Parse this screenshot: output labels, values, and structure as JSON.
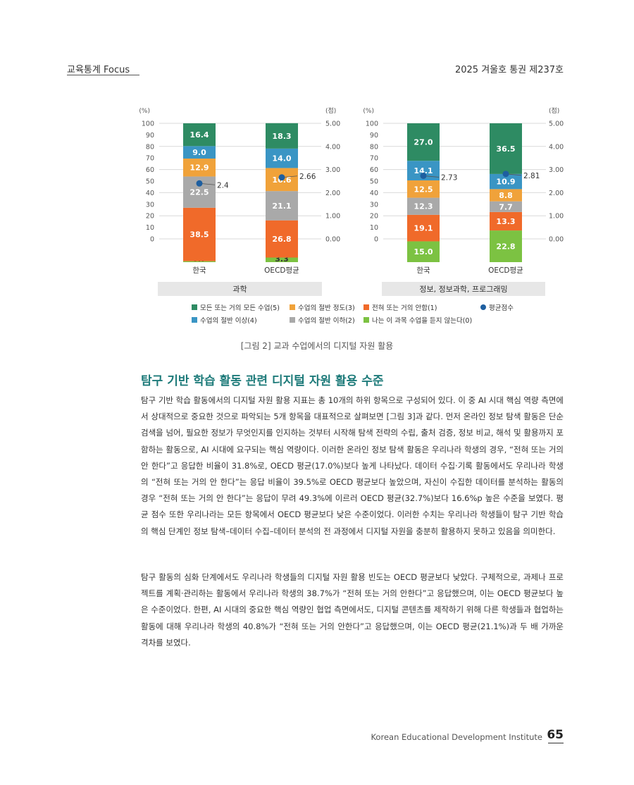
{
  "header": {
    "left": "교육통계 Focus",
    "right": "2025 겨울호 통권 제237호"
  },
  "chart_data": [
    {
      "type": "bar",
      "stacked": true,
      "title": "과학",
      "ylabel_left": "(%)",
      "ylabel_right": "(점)",
      "ylim": [
        0,
        100
      ],
      "y2lim": [
        0,
        5
      ],
      "left_ticks": [
        "100",
        "90",
        "80",
        "70",
        "60",
        "50",
        "40",
        "30",
        "20",
        "10",
        "0"
      ],
      "right_ticks": [
        "5.00",
        "4.00",
        "3.00",
        "2.00",
        "1.00",
        "0.00"
      ],
      "categories": [
        "한국",
        "OECD평균"
      ],
      "series": [
        {
          "name": "나는 이 과목 수업을 듣지 않는다(0)",
          "values": [
            0.7,
            3.3
          ]
        },
        {
          "name": "전혀 또는 거의 안함(1)",
          "values": [
            38.5,
            26.8
          ]
        },
        {
          "name": "수업의 절반 이하(2)",
          "values": [
            22.5,
            21.1
          ]
        },
        {
          "name": "수업의 절반 정도(3)",
          "values": [
            12.9,
            16.6
          ]
        },
        {
          "name": "수업의 절반 이상(4)",
          "values": [
            9.0,
            14.0
          ]
        },
        {
          "name": "모든 또는 거의 모든 수업(5)",
          "values": [
            16.4,
            18.3
          ]
        }
      ],
      "value_labels": [
        [
          "0.7",
          "38.5",
          "22.5",
          "12.9",
          "9.0",
          "16.4"
        ],
        [
          "3.3",
          "26.8",
          "21.1",
          "16.6",
          "14.0",
          "18.3"
        ]
      ],
      "average_score": [
        2.4,
        2.66
      ],
      "average_score_labels": [
        "2.4",
        "2.66"
      ]
    },
    {
      "type": "bar",
      "stacked": true,
      "title": "정보, 정보과학, 프로그래밍",
      "ylabel_left": "(%)",
      "ylabel_right": "(점)",
      "ylim": [
        0,
        100
      ],
      "y2lim": [
        0,
        5
      ],
      "left_ticks": [
        "100",
        "90",
        "80",
        "70",
        "60",
        "50",
        "40",
        "30",
        "20",
        "10",
        "0"
      ],
      "right_ticks": [
        "5.00",
        "4.00",
        "3.00",
        "2.00",
        "1.00",
        "0.00"
      ],
      "categories": [
        "한국",
        "OECD평균"
      ],
      "series": [
        {
          "name": "나는 이 과목 수업을 듣지 않는다(0)",
          "values": [
            15.0,
            22.8
          ]
        },
        {
          "name": "전혀 또는 거의 안함(1)",
          "values": [
            19.1,
            13.3
          ]
        },
        {
          "name": "수업의 절반 이하(2)",
          "values": [
            12.3,
            7.7
          ]
        },
        {
          "name": "수업의 절반 정도(3)",
          "values": [
            12.5,
            8.8
          ]
        },
        {
          "name": "수업의 절반 이상(4)",
          "values": [
            14.1,
            10.9
          ]
        },
        {
          "name": "모든 또는 거의 모든 수업(5)",
          "values": [
            27.0,
            36.5
          ]
        }
      ],
      "value_labels": [
        [
          "15.0",
          "19.1",
          "12.3",
          "12.5",
          "14.1",
          "27.0"
        ],
        [
          "22.8",
          "13.3",
          "7.7",
          "8.8",
          "10.9",
          "36.5"
        ]
      ],
      "average_score": [
        2.73,
        2.81
      ],
      "average_score_labels": [
        "2.73",
        "2.81"
      ]
    }
  ],
  "legend": [
    {
      "label": "모든 또는 거의 모든 수업(5)",
      "color": "#2e8b63"
    },
    {
      "label": "수업의 절반 정도(3)",
      "color": "#f0a23a"
    },
    {
      "label": "전혀 또는 거의 안함(1)",
      "color": "#f06a2a"
    },
    {
      "label": "평균점수",
      "color": "#1e5fa0",
      "marker": "dot"
    },
    {
      "label": "수업의 절반 이상(4)",
      "color": "#3a95c4"
    },
    {
      "label": "수업의 절반 이하(2)",
      "color": "#a9a9a9"
    },
    {
      "label": "나는 이 과목 수업을 듣지 않는다(0)",
      "color": "#7cc242"
    }
  ],
  "colors": {
    "level0": "#7cc242",
    "level1": "#f06a2a",
    "level2": "#a9a9a9",
    "level3": "#f0a23a",
    "level4": "#3a95c4",
    "level5": "#2e8b63",
    "dot": "#1e5fa0",
    "title_bg": "#e7e7e7"
  },
  "caption": "[그림 2] 교과 수업에서의 디지털 자원 활용",
  "section_title": "탐구 기반 학습 활동 관련 디지털 자원 활용 수준",
  "paragraphs": [
    "탐구 기반 학습 활동에서의 디지털 자원 활용 지표는 총 10개의 하위 항목으로 구성되어 있다. 이 중 AI 시대 핵심 역량 측면에서 상대적으로 중요한 것으로 파악되는 5개 항목을 대표적으로 살펴보면 [그림 3]과 같다. 먼저 온라인 정보 탐색 활동은 단순 검색을 넘어, 필요한 정보가 무엇인지를 인지하는 것부터 시작해 탐색 전략의 수립, 출처 검증, 정보 비교, 해석 및 활용까지 포함하는 활동으로, AI 시대에 요구되는 핵심 역량이다. 이러한 온라인 정보 탐색 활동은 우리나라 학생의 경우, “전혀 또는 거의 안 한다”고 응답한 비율이 31.8%로, OECD 평균(17.0%)보다 높게 나타났다. 데이터 수집·기록 활동에서도 우리나라 학생의 “전혀 또는 거의 안 한다”는 응답 비율이 39.5%로 OECD 평균보다 높았으며, 자신이 수집한 데이터를 분석하는 활동의 경우 “전혀 또는 거의 안 한다”는 응답이 무려 49.3%에 이르러 OECD 평균(32.7%)보다 16.6%p 높은 수준을 보였다. 평균 점수 또한 우리나라는 모든 항목에서 OECD 평균보다 낮은 수준이었다. 이러한 수치는 우리나라 학생들이 탐구 기반 학습의 핵심 단계인 정보 탐색–데이터 수집–데이터 분석의 전 과정에서 디지털 자원을 충분히 활용하지 못하고 있음을 의미한다.",
    "탐구 활동의 심화 단계에서도 우리나라 학생들의 디지털 자원 활용 빈도는 OECD 평균보다 낮았다. 구체적으로, 과제나 프로젝트를 계획·관리하는 활동에서 우리나라 학생의 38.7%가 “전혀 또는 거의 안한다”고 응답했으며, 이는 OECD 평균보다 높은 수준이었다. 한편, AI 시대의 중요한 핵심 역량인 협업 측면에서도, 디지털 콘텐츠를 제작하기 위해 다른 학생들과 협업하는 활동에 대해 우리나라 학생의 40.8%가 “전혀 또는 거의 안한다”고 응답했으며, 이는 OECD 평균(21.1%)과 두 배 가까운 격차를 보였다."
  ],
  "footer": {
    "institution": "Korean Educational Development Institute",
    "page": "65"
  }
}
